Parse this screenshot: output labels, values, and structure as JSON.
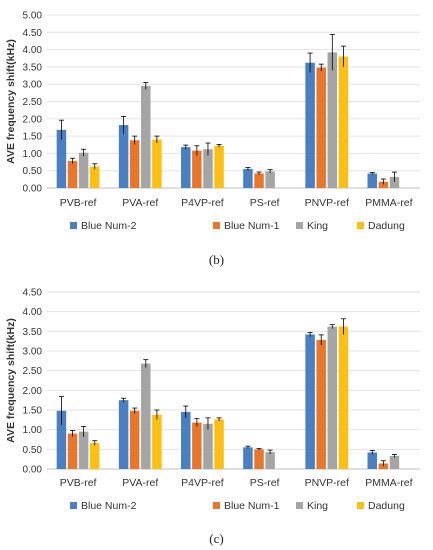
{
  "captions": [
    "(b)",
    "(c)"
  ],
  "colors": {
    "Blue Num-2": "#4a7fc1",
    "Blue Num-1": "#e8772e",
    "King": "#a5a5a5",
    "Dadung": "#fcc015",
    "error_bar": "#000000"
  },
  "chart_data": [
    {
      "type": "bar",
      "title": "",
      "ylabel": "AVE frequency shift(kHz)",
      "xlabel": "",
      "ylim": [
        0,
        5.0
      ],
      "yticks": [
        "0.00",
        "0.50",
        "1.00",
        "1.50",
        "2.00",
        "2.50",
        "3.00",
        "3.50",
        "4.00",
        "4.50",
        "5.00"
      ],
      "categories": [
        "PVB-ref",
        "PVA-ref",
        "P4VP-ref",
        "PS-ref",
        "PNVP-ref",
        "PMMA-ref"
      ],
      "legend_position": "bottom",
      "series": [
        {
          "name": "Blue Num-2",
          "values": [
            1.68,
            1.82,
            1.18,
            0.55,
            3.62,
            0.42
          ],
          "errors": [
            0.28,
            0.25,
            0.06,
            0.04,
            0.28,
            0.03
          ]
        },
        {
          "name": "Blue Num-1",
          "values": [
            0.78,
            1.38,
            1.08,
            0.42,
            3.48,
            0.18
          ],
          "errors": [
            0.08,
            0.12,
            0.14,
            0.04,
            0.1,
            0.08
          ]
        },
        {
          "name": "King",
          "values": [
            1.02,
            2.95,
            1.12,
            0.48,
            3.92,
            0.32
          ],
          "errors": [
            0.1,
            0.1,
            0.18,
            0.05,
            0.52,
            0.14
          ]
        },
        {
          "name": "Dadung",
          "values": [
            0.62,
            1.4,
            1.22,
            0.0,
            3.8,
            0.0
          ],
          "errors": [
            0.08,
            0.1,
            0.04,
            0.0,
            0.3,
            0.0
          ]
        }
      ]
    },
    {
      "type": "bar",
      "title": "",
      "ylabel": "AVE frequency shift(kHz)",
      "xlabel": "",
      "ylim": [
        0,
        4.5
      ],
      "yticks": [
        "0.00",
        "0.50",
        "1.00",
        "1.50",
        "2.00",
        "2.50",
        "3.00",
        "3.50",
        "4.00",
        "4.50"
      ],
      "categories": [
        "PVB-ref",
        "PVA-ref",
        "P4VP-ref",
        "PS-ref",
        "PNVP-ref",
        "PMMA-ref"
      ],
      "legend_position": "bottom",
      "series": [
        {
          "name": "Blue Num-2",
          "values": [
            1.48,
            1.75,
            1.45,
            0.55,
            3.42,
            0.42
          ],
          "errors": [
            0.36,
            0.05,
            0.15,
            0.03,
            0.05,
            0.05
          ]
        },
        {
          "name": "Blue Num-1",
          "values": [
            0.9,
            1.48,
            1.18,
            0.5,
            3.28,
            0.14
          ],
          "errors": [
            0.08,
            0.07,
            0.1,
            0.02,
            0.13,
            0.07
          ]
        },
        {
          "name": "King",
          "values": [
            0.95,
            2.68,
            1.15,
            0.43,
            3.62,
            0.33
          ],
          "errors": [
            0.13,
            0.1,
            0.15,
            0.05,
            0.05,
            0.04
          ]
        },
        {
          "name": "Dadung",
          "values": [
            0.66,
            1.38,
            1.26,
            0.0,
            3.62,
            0.0
          ],
          "errors": [
            0.06,
            0.12,
            0.04,
            0.0,
            0.2,
            0.0
          ]
        }
      ]
    }
  ]
}
